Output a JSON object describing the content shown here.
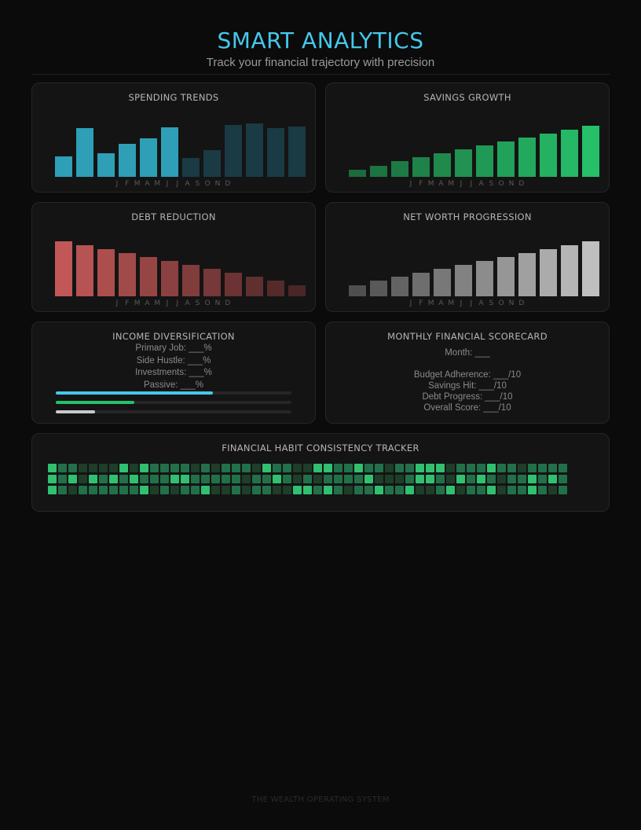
{
  "header": {
    "title": "SMART ANALYTICS",
    "subtitle": "Track your financial trajectory with precision"
  },
  "month_labels": [
    "J",
    "F",
    "M",
    "A",
    "M",
    "J",
    "J",
    "A",
    "S",
    "O",
    "N",
    "D"
  ],
  "chart_data": [
    {
      "id": "spending",
      "type": "bar",
      "title": "SPENDING TRENDS",
      "categories": [
        "J",
        "F",
        "M",
        "A",
        "M",
        "J",
        "J",
        "A",
        "S",
        "O",
        "N",
        "D"
      ],
      "values": [
        26,
        62,
        30,
        42,
        49,
        63,
        24,
        34,
        66,
        68,
        62,
        64
      ],
      "ylim": [
        0,
        70
      ],
      "colors": {
        "recent": "#2e9fb7",
        "later": "#1a3a44"
      },
      "highlighted_months": 6
    },
    {
      "id": "savings",
      "type": "bar",
      "title": "SAVINGS GROWTH",
      "categories": [
        "J",
        "F",
        "M",
        "A",
        "M",
        "J",
        "J",
        "A",
        "S",
        "O",
        "N",
        "D"
      ],
      "values": [
        9,
        14,
        20,
        25,
        30,
        35,
        40,
        45,
        50,
        55,
        60,
        65
      ],
      "ylim": [
        0,
        70
      ],
      "colors": {
        "start": "#1c6b3d",
        "end": "#26c06a"
      }
    },
    {
      "id": "debt",
      "type": "bar",
      "title": "DEBT REDUCTION",
      "categories": [
        "J",
        "F",
        "M",
        "A",
        "M",
        "J",
        "J",
        "A",
        "S",
        "O",
        "N",
        "D"
      ],
      "values": [
        70,
        65,
        60,
        55,
        50,
        45,
        40,
        35,
        30,
        25,
        20,
        14
      ],
      "ylim": [
        0,
        70
      ],
      "colors": {
        "start": "#c25757",
        "end": "#4a2626"
      }
    },
    {
      "id": "networth",
      "type": "bar",
      "title": "NET WORTH PROGRESSION",
      "categories": [
        "J",
        "F",
        "M",
        "A",
        "M",
        "J",
        "J",
        "A",
        "S",
        "O",
        "N",
        "D"
      ],
      "values": [
        14,
        20,
        25,
        30,
        35,
        40,
        45,
        50,
        55,
        60,
        65,
        70
      ],
      "ylim": [
        0,
        70
      ],
      "colors": {
        "start": "#4f4f4f",
        "end": "#bfbfbf"
      }
    }
  ],
  "income": {
    "title": "INCOME DIVERSIFICATION",
    "lines": [
      "Primary Job: ___%",
      "Side Hustle: ___%",
      "Investments: ___%",
      "Passive: ___%"
    ],
    "bars": [
      {
        "fraction": 0.667,
        "color": "#45c8ec"
      },
      {
        "fraction": 0.333,
        "color": "#26c06a"
      },
      {
        "fraction": 0.167,
        "color": "#c9c9c9"
      }
    ]
  },
  "scorecard": {
    "title": "MONTHLY FINANCIAL SCORECARD",
    "month_line": "Month: ___",
    "lines": [
      "Budget Adherence: ___/10",
      "Savings Hit: ___/10",
      "Debt Progress: ___/10",
      "Overall Score: ___/10"
    ]
  },
  "habit_tracker": {
    "title": "FINANCIAL HABIT CONSISTENCY TRACKER",
    "colors": [
      "#1e3e2a",
      "#22704a",
      "#30c070"
    ],
    "rows": [
      [
        2,
        1,
        1,
        0,
        0,
        0,
        0,
        2,
        0,
        2,
        1,
        1,
        1,
        1,
        0,
        1,
        0,
        1,
        1,
        1,
        0,
        2,
        1,
        1,
        0,
        0,
        2,
        2,
        1,
        1,
        2,
        1,
        1,
        0,
        1,
        1,
        2,
        2,
        2,
        0,
        1,
        1,
        1,
        2,
        1,
        1,
        0,
        1,
        1,
        1,
        1
      ],
      [
        2,
        1,
        2,
        0,
        2,
        1,
        2,
        1,
        2,
        1,
        1,
        1,
        2,
        2,
        1,
        1,
        1,
        1,
        1,
        0,
        1,
        1,
        2,
        1,
        0,
        1,
        0,
        1,
        1,
        1,
        1,
        2,
        0,
        0,
        0,
        1,
        2,
        2,
        1,
        0,
        2,
        1,
        2,
        1,
        0,
        1,
        1,
        2,
        1,
        2,
        1
      ],
      [
        2,
        1,
        0,
        1,
        1,
        1,
        1,
        1,
        1,
        2,
        0,
        1,
        0,
        1,
        1,
        2,
        0,
        0,
        1,
        0,
        1,
        1,
        0,
        0,
        2,
        2,
        1,
        2,
        1,
        0,
        1,
        1,
        2,
        1,
        1,
        2,
        0,
        0,
        1,
        2,
        0,
        1,
        1,
        2,
        0,
        1,
        1,
        2,
        1,
        0,
        1
      ]
    ]
  },
  "footer": "THE WEALTH OPERATING SYSTEM"
}
